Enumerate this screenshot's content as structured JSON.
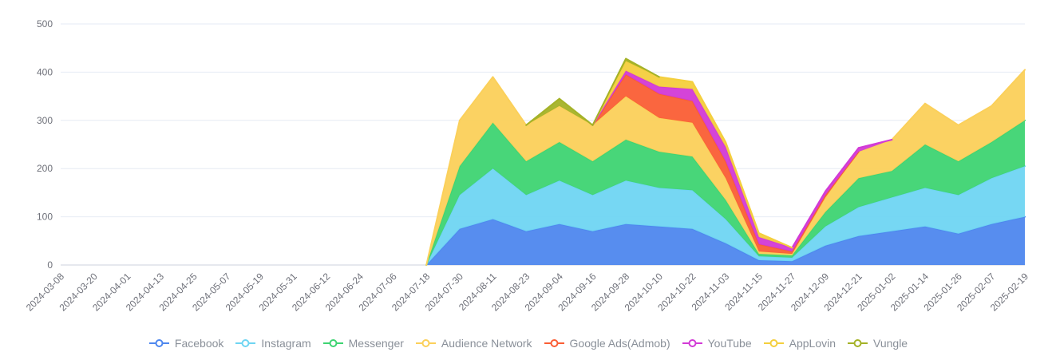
{
  "chart_data": {
    "type": "area",
    "stacked": true,
    "title": "",
    "xlabel": "",
    "ylabel": "",
    "ylim": [
      0,
      500
    ],
    "yticks": [
      0,
      100,
      200,
      300,
      400,
      500
    ],
    "grid": true,
    "legend_position": "bottom",
    "x_label_rotation": 45,
    "x": [
      "2024-03-08",
      "2024-03-20",
      "2024-04-01",
      "2024-04-13",
      "2024-04-25",
      "2024-05-07",
      "2024-05-19",
      "2024-05-31",
      "2024-06-12",
      "2024-06-24",
      "2024-07-06",
      "2024-07-18",
      "2024-07-30",
      "2024-08-11",
      "2024-08-23",
      "2024-09-04",
      "2024-09-16",
      "2024-09-28",
      "2024-10-10",
      "2024-10-22",
      "2024-11-03",
      "2024-11-15",
      "2024-11-27",
      "2024-12-09",
      "2024-12-21",
      "2025-01-02",
      "2025-01-14",
      "2025-01-26",
      "2025-02-07",
      "2025-02-19"
    ],
    "series": [
      {
        "name": "Facebook",
        "color": "#4e87ee",
        "values": [
          0,
          0,
          0,
          0,
          0,
          0,
          0,
          0,
          0,
          0,
          0,
          0,
          75,
          95,
          70,
          85,
          70,
          85,
          80,
          75,
          45,
          10,
          8,
          40,
          60,
          70,
          80,
          65,
          85,
          100
        ]
      },
      {
        "name": "Instagram",
        "color": "#6fd5f2",
        "values": [
          0,
          0,
          0,
          0,
          0,
          0,
          0,
          0,
          0,
          0,
          0,
          0,
          70,
          105,
          75,
          90,
          75,
          90,
          80,
          80,
          50,
          8,
          7,
          40,
          60,
          70,
          80,
          80,
          95,
          105
        ]
      },
      {
        "name": "Messenger",
        "color": "#3ed472",
        "values": [
          0,
          0,
          0,
          0,
          0,
          0,
          0,
          0,
          0,
          0,
          0,
          0,
          60,
          95,
          70,
          80,
          70,
          85,
          75,
          70,
          40,
          5,
          5,
          30,
          60,
          55,
          90,
          70,
          75,
          95
        ]
      },
      {
        "name": "Audience Network",
        "color": "#fbd05a",
        "values": [
          0,
          0,
          0,
          0,
          0,
          0,
          0,
          0,
          0,
          0,
          0,
          0,
          95,
          95,
          75,
          75,
          75,
          90,
          70,
          70,
          45,
          5,
          3,
          30,
          55,
          65,
          85,
          75,
          75,
          105
        ]
      },
      {
        "name": "Google Ads(Admob)",
        "color": "#fa5e35",
        "values": [
          0,
          0,
          0,
          0,
          0,
          0,
          0,
          0,
          0,
          0,
          0,
          0,
          0,
          0,
          0,
          0,
          0,
          45,
          50,
          45,
          35,
          15,
          5,
          5,
          0,
          0,
          0,
          0,
          0,
          0
        ]
      },
      {
        "name": "YouTube",
        "color": "#d23ad6",
        "values": [
          0,
          0,
          0,
          0,
          0,
          0,
          0,
          0,
          0,
          0,
          0,
          0,
          0,
          0,
          0,
          0,
          0,
          8,
          15,
          25,
          30,
          15,
          8,
          8,
          8,
          0,
          0,
          0,
          0,
          0
        ]
      },
      {
        "name": "AppLovin",
        "color": "#f4cf3d",
        "values": [
          0,
          0,
          0,
          0,
          0,
          0,
          0,
          0,
          0,
          0,
          0,
          0,
          0,
          0,
          0,
          0,
          0,
          20,
          20,
          15,
          10,
          8,
          0,
          0,
          0,
          0,
          0,
          0,
          0,
          0
        ]
      },
      {
        "name": "Vungle",
        "color": "#a4b227",
        "values": [
          0,
          0,
          0,
          0,
          0,
          0,
          0,
          0,
          0,
          0,
          0,
          0,
          0,
          0,
          0,
          15,
          0,
          5,
          0,
          0,
          0,
          0,
          0,
          0,
          0,
          0,
          0,
          0,
          0,
          0
        ]
      }
    ]
  }
}
